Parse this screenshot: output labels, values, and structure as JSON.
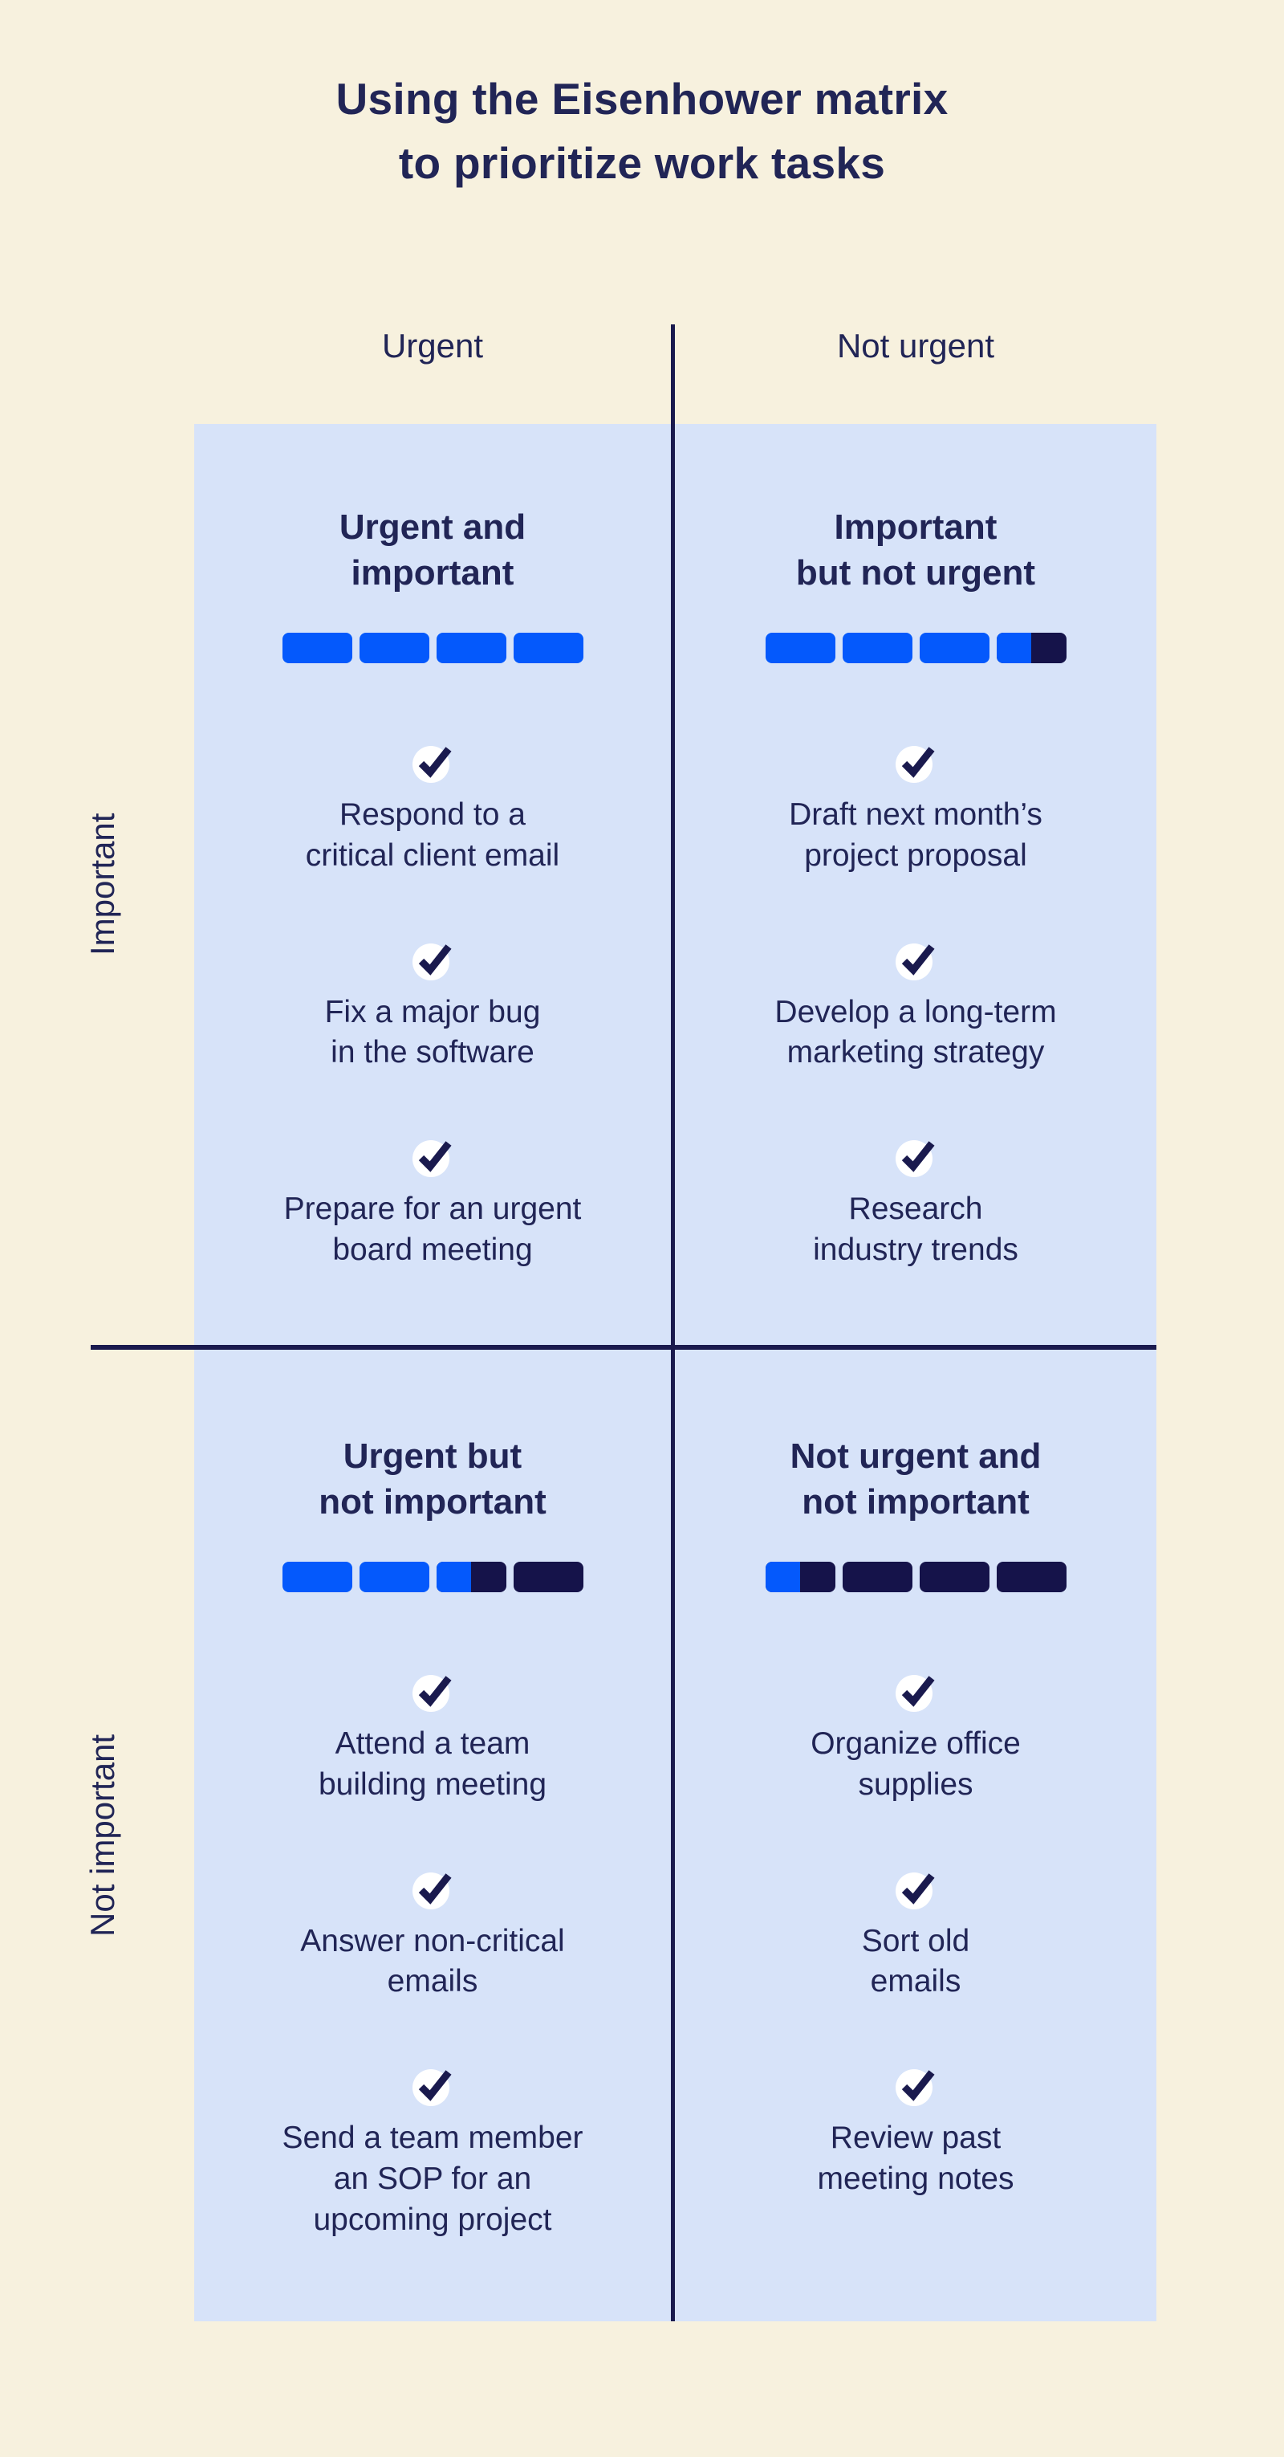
{
  "title": "Using the Eisenhower matrix\nto prioritize work tasks",
  "axis": {
    "column_left": "Urgent",
    "column_right": "Not urgent",
    "row_top": "Important",
    "row_bottom": "Not important"
  },
  "colors": {
    "background": "#F7F1DE",
    "quadrant_bg": "#D7E3F9",
    "accent_blue": "#0459FC",
    "dark_navy": "#15134A",
    "divider": "#1A1A4E",
    "text_navy": "#212556",
    "check_circle": "#FFFFFF",
    "check_mark": "#1A1A4E"
  },
  "quadrants": [
    {
      "title": "Urgent and\nimportant",
      "score": {
        "value": 4,
        "max": 4
      },
      "tasks": [
        "Respond to a\ncritical client email",
        "Fix a major bug\nin the software",
        "Prepare for an urgent\nboard meeting"
      ]
    },
    {
      "title": "Important\nbut not urgent",
      "score": {
        "value": 3.5,
        "max": 4
      },
      "tasks": [
        "Draft next month’s\nproject proposal",
        "Develop a long-term\nmarketing strategy",
        "Research\nindustry trends"
      ]
    },
    {
      "title": "Urgent but\nnot important",
      "score": {
        "value": 2.5,
        "max": 4
      },
      "tasks": [
        "Attend a team\nbuilding meeting",
        "Answer non-critical\nemails",
        "Send a team member\nan SOP for an\nupcoming project"
      ]
    },
    {
      "title": "Not urgent and\nnot important",
      "score": {
        "value": 0.5,
        "max": 4
      },
      "tasks": [
        "Organize office\nsupplies",
        "Sort old\nemails",
        "Review past\nmeeting notes"
      ]
    }
  ]
}
